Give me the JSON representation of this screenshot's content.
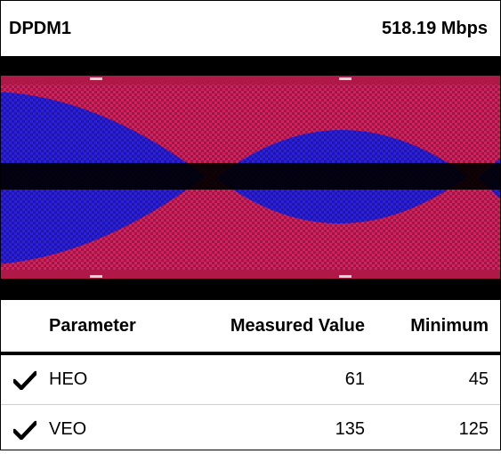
{
  "header": {
    "channel": "DPDM1",
    "rate": "518.19 Mbps"
  },
  "eye_diagram": {
    "background_color": "#000000",
    "eye_fill_color": "#2020e0",
    "transition_color": "#e0206a",
    "crossing_count": 2
  },
  "table": {
    "columns": {
      "parameter": "Parameter",
      "measured": "Measured Value",
      "minimum": "Minimum"
    },
    "rows": [
      {
        "status_icon": "check-icon",
        "parameter": "HEO",
        "measured": "61",
        "minimum": "45"
      },
      {
        "status_icon": "check-icon",
        "parameter": "VEO",
        "measured": "135",
        "minimum": "125"
      }
    ]
  }
}
